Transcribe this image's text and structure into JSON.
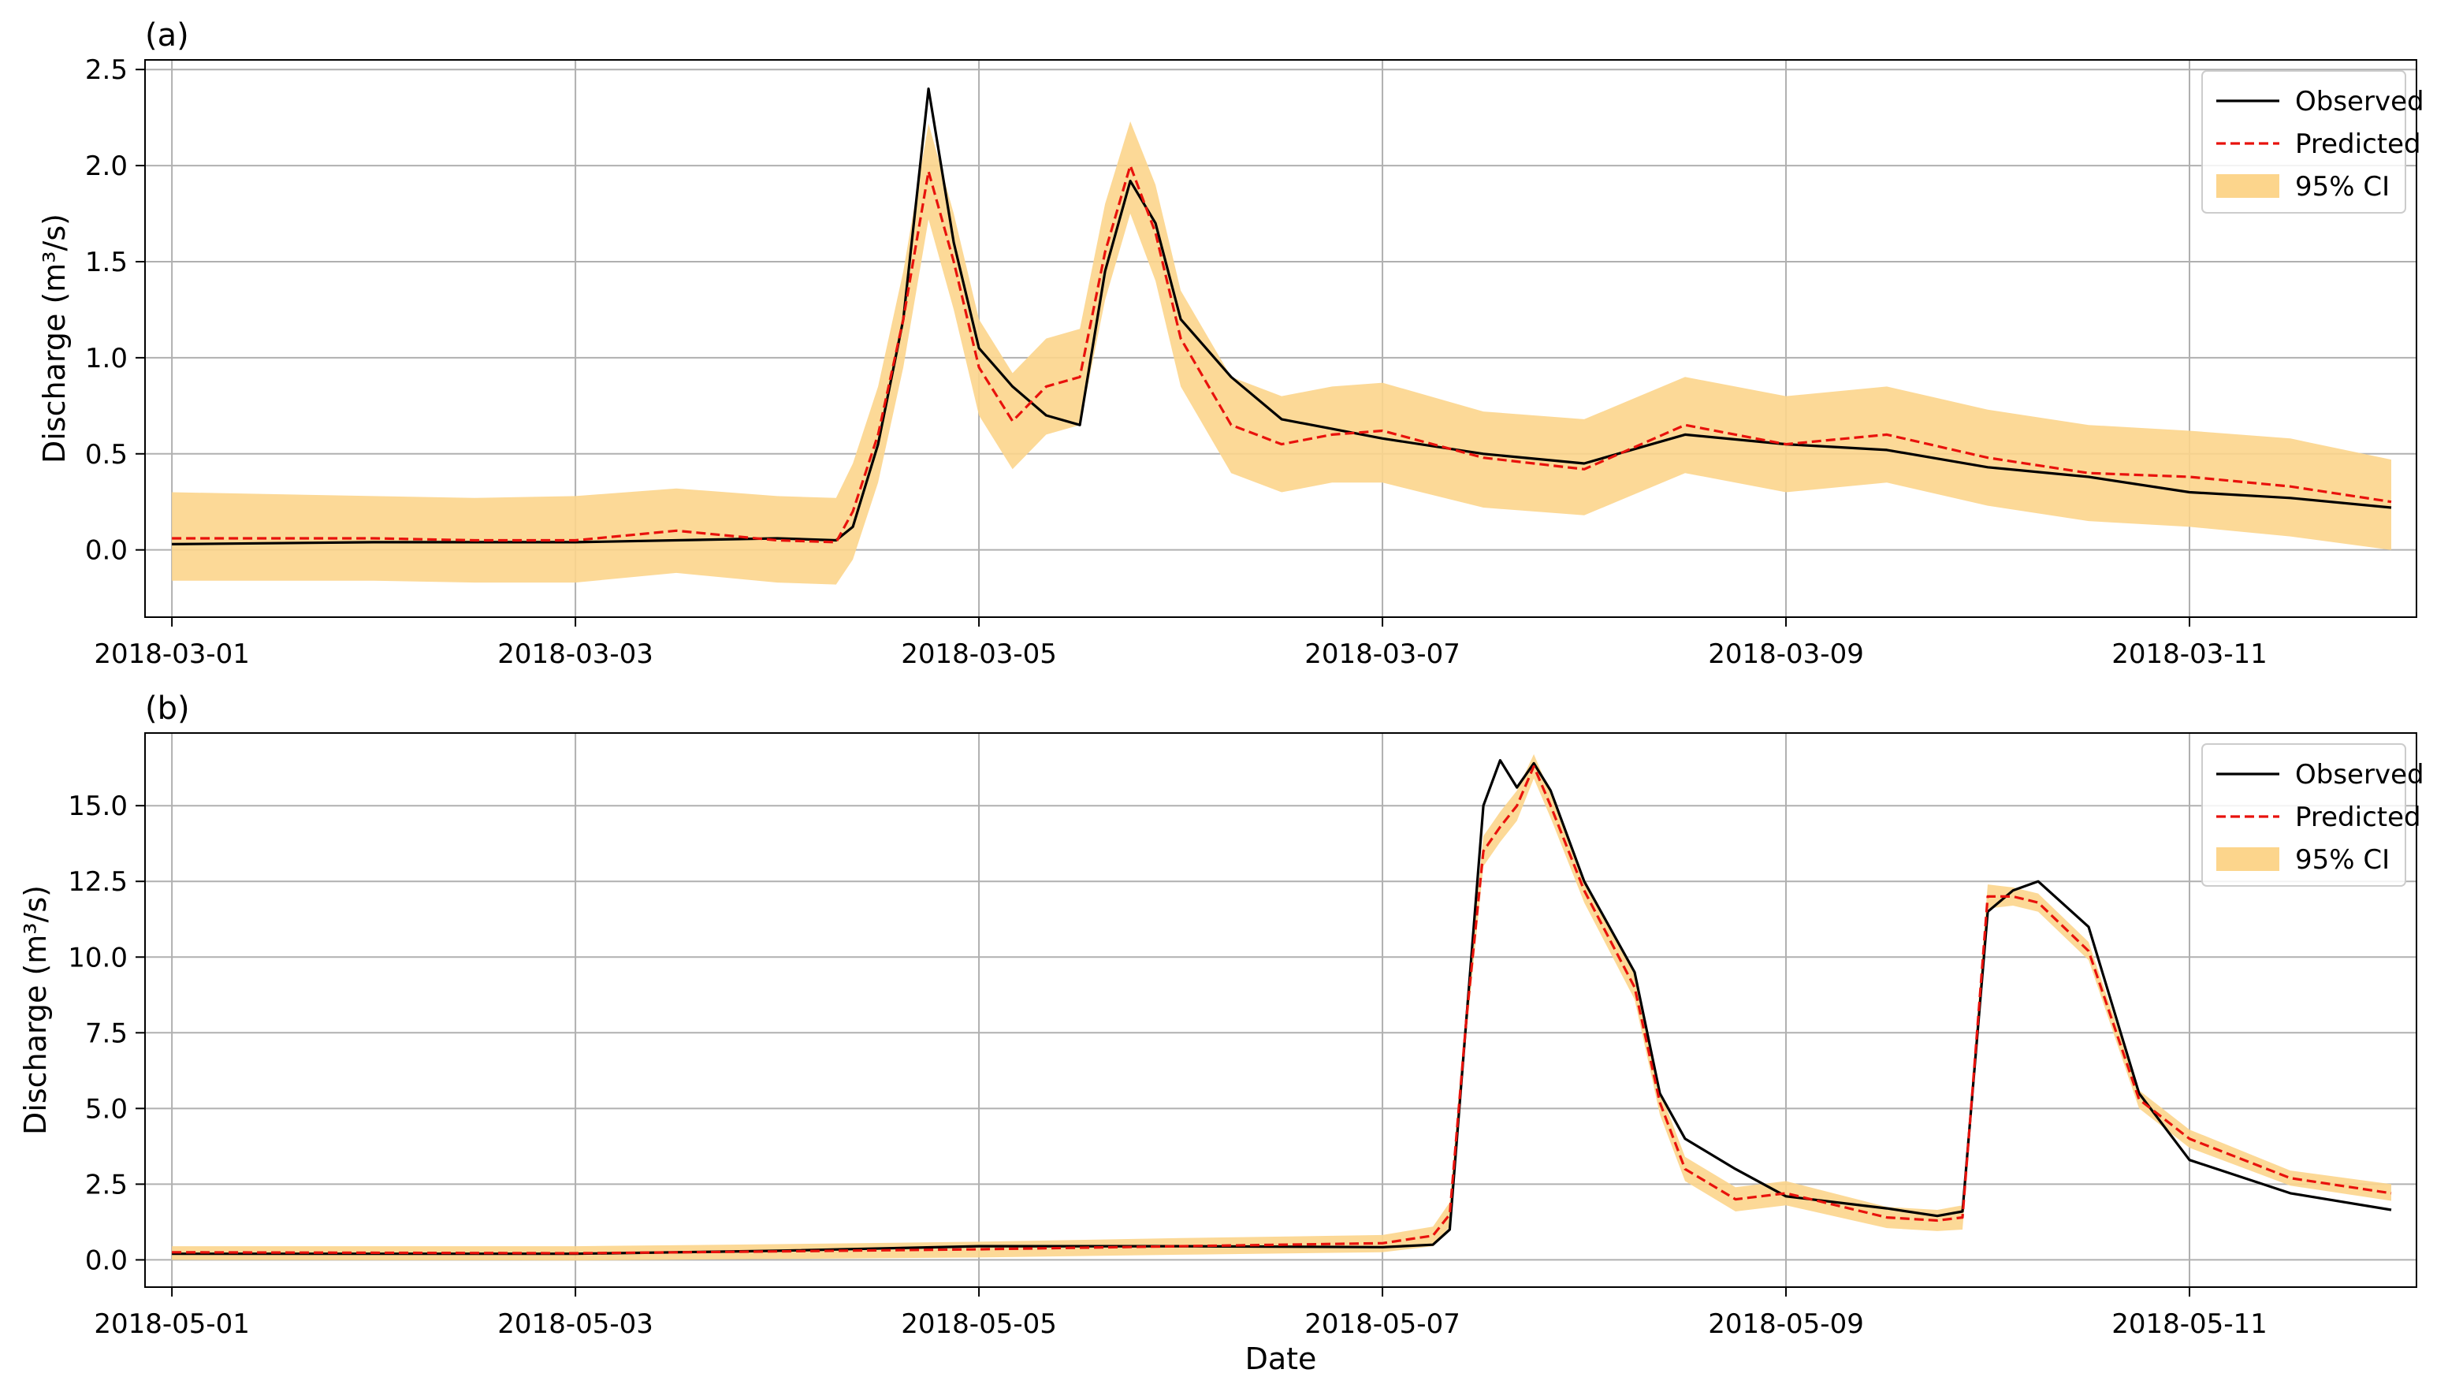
{
  "xlabel": "Date",
  "legend_labels": {
    "observed": "Observed",
    "predicted": "Predicted",
    "ci": "95% CI"
  },
  "colors": {
    "observed": "#000000",
    "predicted": "#e8120c",
    "ci_fill": "#fcd58c",
    "grid": "#b0b0b0"
  },
  "chart_data": [
    {
      "type": "line",
      "panel_label": "(a)",
      "ylabel": "Discharge (m³/s)",
      "x_unit": "day",
      "xlim": [
        "2018-02-28 20:48",
        "2018-03-12 03:00"
      ],
      "ylim": [
        -0.35,
        2.55
      ],
      "x_ticks": [
        "2018-03-01",
        "2018-03-03",
        "2018-03-05",
        "2018-03-07",
        "2018-03-09",
        "2018-03-11"
      ],
      "y_ticks": [
        0.0,
        0.5,
        1.0,
        1.5,
        2.0,
        2.5
      ],
      "y_tick_labels": [
        "0.0",
        "0.5",
        "1.0",
        "1.5",
        "2.0",
        "2.5"
      ],
      "grid": true,
      "legend_position": "top-right",
      "series": [
        {
          "name": "Observed",
          "x": [
            "2018-03-01 00:00",
            "2018-03-02 00:00",
            "2018-03-03 00:00",
            "2018-03-04 00:00",
            "2018-03-04 07:00",
            "2018-03-04 09:00",
            "2018-03-04 12:00",
            "2018-03-04 15:00",
            "2018-03-04 18:00",
            "2018-03-04 21:00",
            "2018-03-05 00:00",
            "2018-03-05 04:00",
            "2018-03-05 08:00",
            "2018-03-05 12:00",
            "2018-03-05 15:00",
            "2018-03-05 18:00",
            "2018-03-05 21:00",
            "2018-03-06 00:00",
            "2018-03-06 06:00",
            "2018-03-06 12:00",
            "2018-03-06 18:00",
            "2018-03-07 00:00",
            "2018-03-07 12:00",
            "2018-03-08 00:00",
            "2018-03-08 12:00",
            "2018-03-09 00:00",
            "2018-03-09 12:00",
            "2018-03-10 00:00",
            "2018-03-10 12:00",
            "2018-03-11 00:00",
            "2018-03-11 12:00",
            "2018-03-12 00:00"
          ],
          "y": [
            0.03,
            0.04,
            0.04,
            0.06,
            0.05,
            0.12,
            0.55,
            1.2,
            2.4,
            1.6,
            1.05,
            0.85,
            0.7,
            0.65,
            1.45,
            1.92,
            1.7,
            1.2,
            0.9,
            0.68,
            0.63,
            0.58,
            0.5,
            0.45,
            0.6,
            0.55,
            0.52,
            0.43,
            0.38,
            0.3,
            0.27,
            0.22
          ]
        },
        {
          "name": "Predicted",
          "x": [
            "2018-03-01 00:00",
            "2018-03-02 00:00",
            "2018-03-02 12:00",
            "2018-03-03 00:00",
            "2018-03-03 12:00",
            "2018-03-04 00:00",
            "2018-03-04 07:00",
            "2018-03-04 09:00",
            "2018-03-04 12:00",
            "2018-03-04 15:00",
            "2018-03-04 18:00",
            "2018-03-04 21:00",
            "2018-03-05 00:00",
            "2018-03-05 04:00",
            "2018-03-05 08:00",
            "2018-03-05 12:00",
            "2018-03-05 15:00",
            "2018-03-05 18:00",
            "2018-03-05 21:00",
            "2018-03-06 00:00",
            "2018-03-06 06:00",
            "2018-03-06 12:00",
            "2018-03-06 18:00",
            "2018-03-07 00:00",
            "2018-03-07 12:00",
            "2018-03-08 00:00",
            "2018-03-08 12:00",
            "2018-03-09 00:00",
            "2018-03-09 12:00",
            "2018-03-10 00:00",
            "2018-03-10 12:00",
            "2018-03-11 00:00",
            "2018-03-11 12:00",
            "2018-03-12 00:00"
          ],
          "y": [
            0.06,
            0.06,
            0.05,
            0.05,
            0.1,
            0.05,
            0.04,
            0.2,
            0.6,
            1.2,
            1.97,
            1.5,
            0.95,
            0.67,
            0.85,
            0.9,
            1.55,
            2.0,
            1.65,
            1.1,
            0.65,
            0.55,
            0.6,
            0.62,
            0.48,
            0.42,
            0.65,
            0.55,
            0.6,
            0.48,
            0.4,
            0.38,
            0.33,
            0.25
          ]
        }
      ],
      "ci_band": {
        "name": "95% CI",
        "x": [
          "2018-03-01 00:00",
          "2018-03-02 00:00",
          "2018-03-02 12:00",
          "2018-03-03 00:00",
          "2018-03-03 12:00",
          "2018-03-04 00:00",
          "2018-03-04 07:00",
          "2018-03-04 09:00",
          "2018-03-04 12:00",
          "2018-03-04 15:00",
          "2018-03-04 18:00",
          "2018-03-04 21:00",
          "2018-03-05 00:00",
          "2018-03-05 04:00",
          "2018-03-05 08:00",
          "2018-03-05 12:00",
          "2018-03-05 15:00",
          "2018-03-05 18:00",
          "2018-03-05 21:00",
          "2018-03-06 00:00",
          "2018-03-06 06:00",
          "2018-03-06 12:00",
          "2018-03-06 18:00",
          "2018-03-07 00:00",
          "2018-03-07 12:00",
          "2018-03-08 00:00",
          "2018-03-08 12:00",
          "2018-03-09 00:00",
          "2018-03-09 12:00",
          "2018-03-10 00:00",
          "2018-03-10 12:00",
          "2018-03-11 00:00",
          "2018-03-11 12:00",
          "2018-03-12 00:00"
        ],
        "lower": [
          -0.16,
          -0.16,
          -0.17,
          -0.17,
          -0.12,
          -0.17,
          -0.18,
          -0.05,
          0.35,
          0.95,
          1.72,
          1.25,
          0.7,
          0.42,
          0.6,
          0.65,
          1.3,
          1.75,
          1.4,
          0.85,
          0.4,
          0.3,
          0.35,
          0.35,
          0.22,
          0.18,
          0.4,
          0.3,
          0.35,
          0.23,
          0.15,
          0.12,
          0.07,
          0.0
        ],
        "upper": [
          0.3,
          0.28,
          0.27,
          0.28,
          0.32,
          0.28,
          0.27,
          0.45,
          0.85,
          1.45,
          2.22,
          1.75,
          1.2,
          0.92,
          1.1,
          1.15,
          1.8,
          2.23,
          1.9,
          1.35,
          0.9,
          0.8,
          0.85,
          0.87,
          0.72,
          0.68,
          0.9,
          0.8,
          0.85,
          0.73,
          0.65,
          0.62,
          0.58,
          0.47
        ]
      }
    },
    {
      "type": "line",
      "panel_label": "(b)",
      "ylabel": "Discharge (m³/s)",
      "x_unit": "day",
      "xlim": [
        "2018-04-30 20:48",
        "2018-05-12 03:00"
      ],
      "ylim": [
        -0.9,
        17.4
      ],
      "x_ticks": [
        "2018-05-01",
        "2018-05-03",
        "2018-05-05",
        "2018-05-07",
        "2018-05-09",
        "2018-05-11"
      ],
      "y_ticks": [
        0.0,
        2.5,
        5.0,
        7.5,
        10.0,
        12.5,
        15.0
      ],
      "y_tick_labels": [
        "0.0",
        "2.5",
        "5.0",
        "7.5",
        "10.0",
        "12.5",
        "15.0"
      ],
      "grid": true,
      "legend_position": "top-right",
      "series": [
        {
          "name": "Observed",
          "x": [
            "2018-05-01 00:00",
            "2018-05-03 00:00",
            "2018-05-04 00:00",
            "2018-05-05 00:00",
            "2018-05-06 00:00",
            "2018-05-07 00:00",
            "2018-05-07 06:00",
            "2018-05-07 08:00",
            "2018-05-07 10:00",
            "2018-05-07 12:00",
            "2018-05-07 14:00",
            "2018-05-07 16:00",
            "2018-05-07 18:00",
            "2018-05-07 20:00",
            "2018-05-08 00:00",
            "2018-05-08 06:00",
            "2018-05-08 09:00",
            "2018-05-08 12:00",
            "2018-05-08 18:00",
            "2018-05-09 00:00",
            "2018-05-09 12:00",
            "2018-05-09 18:00",
            "2018-05-09 21:00",
            "2018-05-10 00:00",
            "2018-05-10 03:00",
            "2018-05-10 06:00",
            "2018-05-10 12:00",
            "2018-05-10 18:00",
            "2018-05-11 00:00",
            "2018-05-11 12:00",
            "2018-05-12 00:00"
          ],
          "y": [
            0.2,
            0.2,
            0.3,
            0.45,
            0.45,
            0.42,
            0.5,
            1.0,
            8.0,
            15.0,
            16.5,
            15.6,
            16.4,
            15.5,
            12.5,
            9.5,
            5.5,
            4.0,
            3.0,
            2.1,
            1.7,
            1.45,
            1.6,
            11.5,
            12.2,
            12.5,
            11.0,
            5.5,
            3.3,
            2.2,
            1.65
          ]
        },
        {
          "name": "Predicted",
          "x": [
            "2018-05-01 00:00",
            "2018-05-03 00:00",
            "2018-05-04 00:00",
            "2018-05-05 00:00",
            "2018-05-06 00:00",
            "2018-05-07 00:00",
            "2018-05-07 06:00",
            "2018-05-07 08:00",
            "2018-05-07 10:00",
            "2018-05-07 12:00",
            "2018-05-07 14:00",
            "2018-05-07 16:00",
            "2018-05-07 18:00",
            "2018-05-07 20:00",
            "2018-05-08 00:00",
            "2018-05-08 06:00",
            "2018-05-08 09:00",
            "2018-05-08 12:00",
            "2018-05-08 18:00",
            "2018-05-09 00:00",
            "2018-05-09 12:00",
            "2018-05-09 18:00",
            "2018-05-09 21:00",
            "2018-05-10 00:00",
            "2018-05-10 03:00",
            "2018-05-10 06:00",
            "2018-05-10 12:00",
            "2018-05-10 18:00",
            "2018-05-11 00:00",
            "2018-05-11 12:00",
            "2018-05-12 00:00"
          ],
          "y": [
            0.25,
            0.22,
            0.28,
            0.35,
            0.45,
            0.55,
            0.8,
            1.5,
            8.0,
            13.5,
            14.3,
            15.0,
            16.3,
            15.0,
            12.2,
            9.0,
            5.2,
            3.0,
            2.0,
            2.2,
            1.4,
            1.3,
            1.4,
            12.0,
            12.0,
            11.8,
            10.2,
            5.3,
            4.0,
            2.7,
            2.2
          ]
        }
      ],
      "ci_band": {
        "name": "95% CI",
        "x": [
          "2018-05-01 00:00",
          "2018-05-03 00:00",
          "2018-05-04 00:00",
          "2018-05-05 00:00",
          "2018-05-06 00:00",
          "2018-05-07 00:00",
          "2018-05-07 06:00",
          "2018-05-07 08:00",
          "2018-05-07 10:00",
          "2018-05-07 12:00",
          "2018-05-07 14:00",
          "2018-05-07 16:00",
          "2018-05-07 18:00",
          "2018-05-07 20:00",
          "2018-05-08 00:00",
          "2018-05-08 06:00",
          "2018-05-08 09:00",
          "2018-05-08 12:00",
          "2018-05-08 18:00",
          "2018-05-09 00:00",
          "2018-05-09 12:00",
          "2018-05-09 18:00",
          "2018-05-09 21:00",
          "2018-05-10 00:00",
          "2018-05-10 03:00",
          "2018-05-10 06:00",
          "2018-05-10 12:00",
          "2018-05-10 18:00",
          "2018-05-11 00:00",
          "2018-05-11 12:00",
          "2018-05-12 00:00"
        ],
        "lower": [
          0.0,
          -0.02,
          0.03,
          0.08,
          0.17,
          0.25,
          0.45,
          1.1,
          7.5,
          13.0,
          13.8,
          14.5,
          15.9,
          14.6,
          11.8,
          8.6,
          4.8,
          2.6,
          1.6,
          1.8,
          1.05,
          0.95,
          1.0,
          11.6,
          11.7,
          11.5,
          9.9,
          5.0,
          3.7,
          2.45,
          1.95
        ],
        "upper": [
          0.45,
          0.45,
          0.52,
          0.6,
          0.72,
          0.82,
          1.1,
          1.9,
          8.5,
          14.0,
          14.8,
          15.5,
          16.7,
          15.4,
          12.6,
          9.4,
          5.6,
          3.4,
          2.4,
          2.6,
          1.75,
          1.65,
          1.8,
          12.4,
          12.3,
          12.1,
          10.5,
          5.6,
          4.3,
          2.95,
          2.5
        ]
      }
    }
  ]
}
